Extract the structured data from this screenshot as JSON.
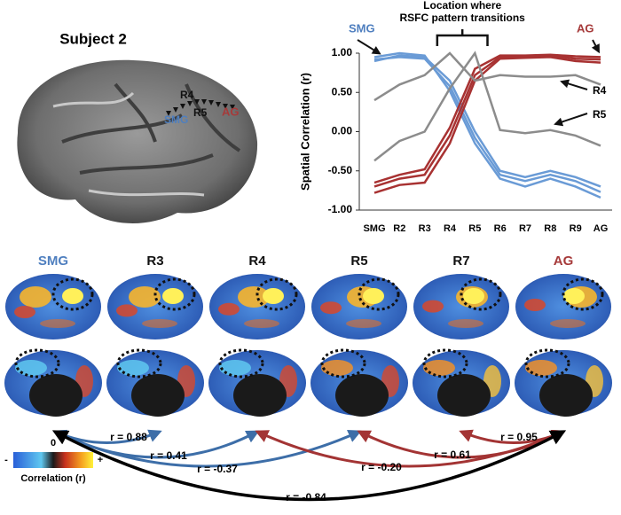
{
  "subject_panel": {
    "title": "Subject 2",
    "labels": [
      {
        "text": "R4",
        "color": "#111111"
      },
      {
        "text": "R5",
        "color": "#111111"
      },
      {
        "text": "SMG",
        "color": "#4f7fbf"
      },
      {
        "text": "AG",
        "color": "#a63a3a"
      }
    ]
  },
  "chart_data": {
    "type": "line",
    "ylabel": "Spatial Correlation (r)",
    "annotation": [
      "Location where",
      "RSFC pattern transitions"
    ],
    "end_labels": [
      {
        "text": "SMG",
        "color": "#4f7fbf"
      },
      {
        "text": "AG",
        "color": "#a63a3a"
      }
    ],
    "categories": [
      "SMG",
      "R2",
      "R3",
      "R4",
      "R5",
      "R6",
      "R7",
      "R8",
      "R9",
      "AG"
    ],
    "series": [
      {
        "color": "#6a9bd6",
        "values": [
          0.9,
          0.97,
          0.95,
          0.65,
          0.0,
          -0.5,
          -0.58,
          -0.5,
          -0.58,
          -0.7
        ]
      },
      {
        "color": "#6a9bd6",
        "values": [
          0.92,
          0.95,
          0.93,
          0.58,
          -0.08,
          -0.55,
          -0.63,
          -0.55,
          -0.63,
          -0.77
        ]
      },
      {
        "color": "#6a9bd6",
        "values": [
          0.95,
          1.0,
          0.97,
          0.52,
          -0.15,
          -0.6,
          -0.7,
          -0.6,
          -0.7,
          -0.84
        ]
      },
      {
        "color": "#a83232",
        "values": [
          -0.65,
          -0.55,
          -0.48,
          0.05,
          0.8,
          0.97,
          0.97,
          0.98,
          0.96,
          0.95
        ]
      },
      {
        "color": "#a83232",
        "values": [
          -0.7,
          -0.6,
          -0.55,
          -0.05,
          0.72,
          0.95,
          0.96,
          0.97,
          0.93,
          0.92
        ]
      },
      {
        "color": "#a83232",
        "values": [
          -0.78,
          -0.68,
          -0.65,
          -0.15,
          0.65,
          0.93,
          0.94,
          0.95,
          0.9,
          0.88
        ]
      },
      {
        "name": "R4",
        "color": "#8c8c8c",
        "values": [
          0.4,
          0.6,
          0.72,
          1.0,
          0.65,
          0.72,
          0.7,
          0.7,
          0.72,
          0.6
        ]
      },
      {
        "name": "R5",
        "color": "#8c8c8c",
        "values": [
          -0.37,
          -0.12,
          0.0,
          0.55,
          1.0,
          0.02,
          -0.02,
          0.02,
          -0.05,
          -0.18
        ]
      }
    ],
    "ylim": [
      -1,
      1
    ],
    "yticks": [
      {
        "value": -1,
        "label": "-1.00"
      },
      {
        "value": -0.5,
        "label": "-0.50"
      },
      {
        "value": 0,
        "label": "0.00"
      },
      {
        "value": 0.5,
        "label": "0.50"
      },
      {
        "value": 1,
        "label": "1.00"
      }
    ]
  },
  "brains": [
    {
      "title": "SMG",
      "color": "#4f7fbf"
    },
    {
      "title": "R3",
      "color": "#111111"
    },
    {
      "title": "R4",
      "color": "#111111"
    },
    {
      "title": "R5",
      "color": "#111111"
    },
    {
      "title": "R7",
      "color": "#111111"
    },
    {
      "title": "AG",
      "color": "#a63a3a"
    }
  ],
  "comparisons": [
    {
      "label": "r = 0.88",
      "color": "#3d6ea8"
    },
    {
      "label": "r = 0.41",
      "color": "#3d6ea8"
    },
    {
      "label": "r = -0.37",
      "color": "#3d6ea8"
    },
    {
      "label": "r = -0.20",
      "color": "#a33434"
    },
    {
      "label": "r = 0.61",
      "color": "#a33434"
    },
    {
      "label": "r = 0.95",
      "color": "#a33434"
    },
    {
      "label": "r = -0.84",
      "color": "#000000"
    }
  ],
  "colorbar": {
    "min": "-",
    "zero": "0",
    "max": "+",
    "label": "Correlation (r)"
  }
}
